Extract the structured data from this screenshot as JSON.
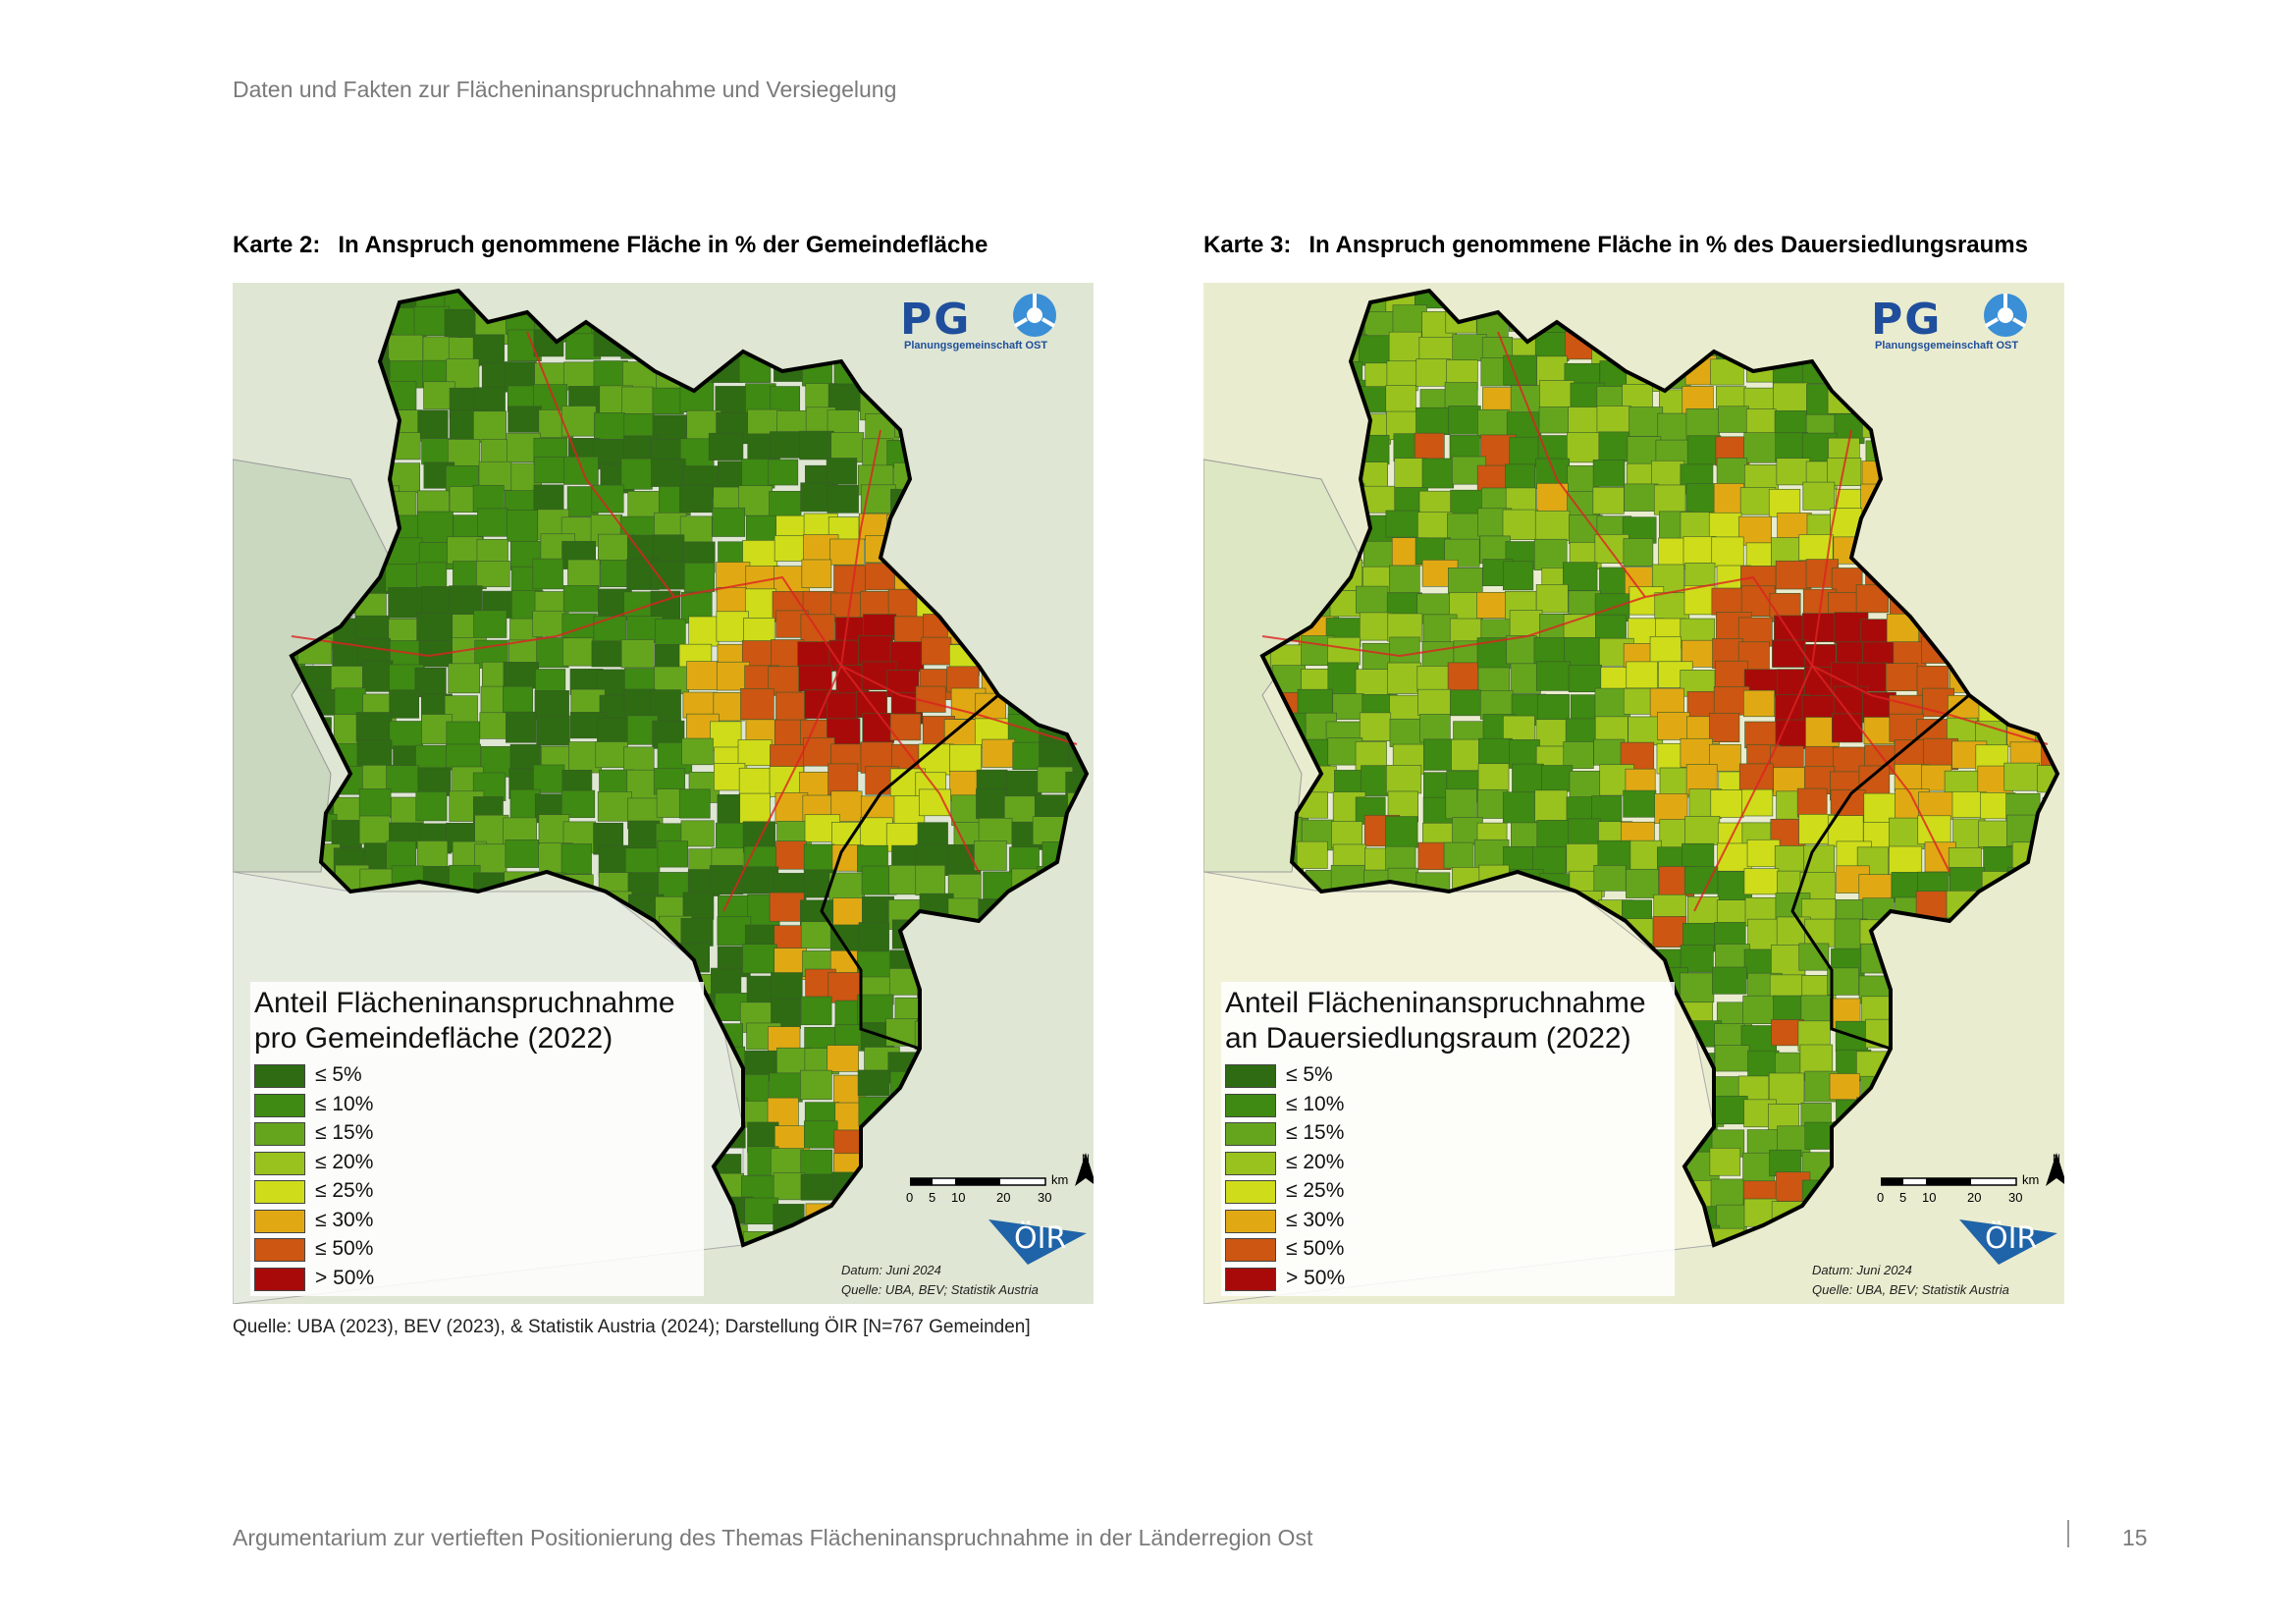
{
  "header": {
    "text": "Daten und Fakten zur Flächeninanspruchnahme und Versiegelung"
  },
  "maps": [
    {
      "number": "Karte 2:",
      "title": "In Anspruch genommene Fläche in % der Gemeindefläche",
      "legend_title": "Anteil Flächeninanspruchnahme pro Gemeindefläche (2022)",
      "date": "Datum: Juni 2024",
      "source": "Quelle: UBA, BEV; Statistik Austria"
    },
    {
      "number": "Karte 3:",
      "title": "In Anspruch genommene Fläche in % des Dauersiedlungsraums",
      "legend_title": "Anteil Flächeninanspruchnahme an Dauersiedlungsraum (2022)",
      "date": "Datum: Juni 2024",
      "source": "Quelle: UBA, BEV; Statistik Austria"
    }
  ],
  "legend_classes": [
    {
      "label": "≤ 5%",
      "color": "#2e6b12"
    },
    {
      "label": "≤ 10%",
      "color": "#3e8a12"
    },
    {
      "label": "≤ 15%",
      "color": "#65a51e"
    },
    {
      "label": "≤ 20%",
      "color": "#99c21f"
    },
    {
      "label": "≤ 25%",
      "color": "#cfdc1a"
    },
    {
      "label": "≤ 30%",
      "color": "#e0a914"
    },
    {
      "label": "≤ 50%",
      "color": "#cc5612"
    },
    {
      "label": "> 50%",
      "color": "#a80a0a"
    }
  ],
  "logos": {
    "pg": "PG",
    "pg_sub": "Planungsgemeinschaft OST",
    "oir": "ÖIR"
  },
  "scale": {
    "ticks": [
      "0",
      "5",
      "10",
      "20",
      "30"
    ],
    "unit": "km",
    "north": "N"
  },
  "source_line": "Quelle: UBA (2023), BEV (2023), & Statistik Austria (2024); Darstellung ÖIR [N=767 Gemeinden]",
  "footer": {
    "text": "Argumentarium zur vertieften Positionierung des Themas Flächeninanspruchnahme in der Länderregion Ost",
    "page": "15"
  }
}
